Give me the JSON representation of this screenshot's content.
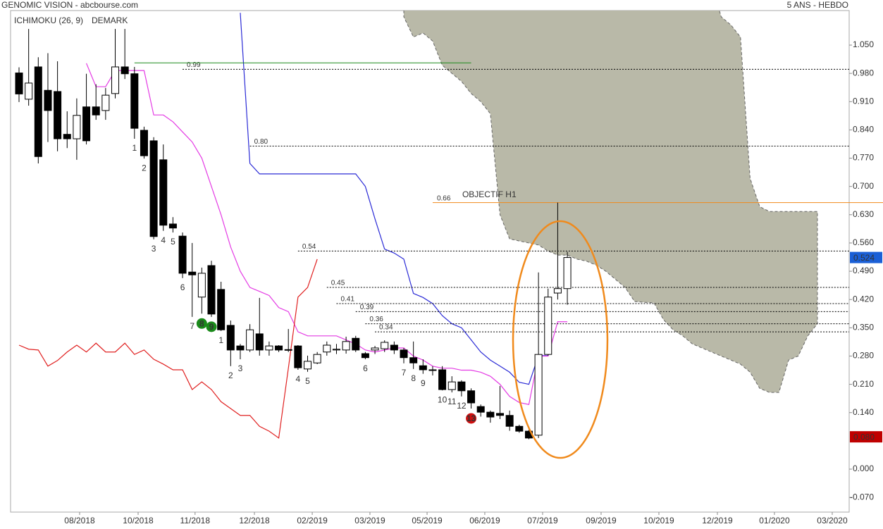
{
  "chart_data": {
    "type": "candlestick",
    "title": "GENOMIC VISION - abcbourse.com",
    "period": "5 ANS - HEBDO",
    "xlim": [
      -0.88,
      86.3
    ],
    "ylim": [
      -0.1064,
      1.1355
    ],
    "xticks": [
      {
        "value": 6.3,
        "label": "08/2018"
      },
      {
        "value": 12.38,
        "label": "10/2018"
      },
      {
        "value": 18.3,
        "label": "11/2018"
      },
      {
        "value": 24.47,
        "label": "12/2018"
      },
      {
        "value": 30.48,
        "label": "02/2019"
      },
      {
        "value": 36.48,
        "label": "03/2019"
      },
      {
        "value": 42.42,
        "label": "05/2019"
      },
      {
        "value": 48.42,
        "label": "06/2019"
      },
      {
        "value": 54.43,
        "label": "07/2019"
      },
      {
        "value": 60.51,
        "label": "09/2019"
      },
      {
        "value": 66.52,
        "label": "10/2019"
      },
      {
        "value": 72.6,
        "label": "12/2019"
      },
      {
        "value": 78.53,
        "label": "01/2020"
      },
      {
        "value": 84.54,
        "label": "03/2020"
      }
    ],
    "yticks": [
      {
        "value": 1.05,
        "label": "1.050"
      },
      {
        "value": 0.98,
        "label": "0.980"
      },
      {
        "value": 0.91,
        "label": "0.910"
      },
      {
        "value": 0.84,
        "label": "0.840"
      },
      {
        "value": 0.77,
        "label": "0.770"
      },
      {
        "value": 0.7,
        "label": "0.700"
      },
      {
        "value": 0.63,
        "label": "0.630"
      },
      {
        "value": 0.56,
        "label": "0.560"
      },
      {
        "value": 0.49,
        "label": "0.490"
      },
      {
        "value": 0.42,
        "label": "0.420"
      },
      {
        "value": 0.35,
        "label": "0.350"
      },
      {
        "value": 0.28,
        "label": "0.280"
      },
      {
        "value": 0.21,
        "label": "0.210"
      },
      {
        "value": 0.14,
        "label": "0.140"
      },
      {
        "value": 0,
        "label": "0.000"
      },
      {
        "value": -0.07,
        "label": "-0.070"
      }
    ],
    "x": [
      0,
      1,
      2,
      3,
      4,
      5,
      6,
      7,
      8,
      9,
      10,
      11,
      12,
      13,
      14,
      15,
      16,
      17,
      18,
      19,
      20,
      21,
      22,
      23,
      24,
      25,
      26,
      27,
      28,
      29,
      30,
      31,
      32,
      33,
      34,
      35,
      36,
      37,
      38,
      39,
      40,
      41,
      42,
      43,
      44,
      45,
      46,
      47,
      48,
      49,
      50,
      51,
      52,
      53,
      54,
      55,
      56,
      57
    ],
    "open": [
      0.981,
      0.916,
      0.996,
      0.938,
      0.935,
      0.829,
      0.818,
      0.897,
      0.897,
      0.888,
      0.93,
      0.996,
      0.979,
      0.839,
      0.813,
      0.766,
      0.607,
      0.577,
      0.488,
      0.426,
      0.504,
      0.445,
      0.356,
      0.305,
      0.295,
      0.335,
      0.295,
      0.305,
      0.295,
      0.305,
      0.248,
      0.263,
      0.29,
      0.295,
      0.295,
      0.324,
      0.286,
      0.295,
      0.298,
      0.307,
      0.295,
      0.276,
      0.256,
      0.246,
      0.246,
      0.197,
      0.216,
      0.194,
      0.155,
      0.141,
      0.138,
      0.133,
      0.106,
      0.094,
      0.084,
      0.284,
      0.436,
      0.447
    ],
    "high": [
      0.995,
      1.09,
      1.02,
      1.03,
      1.01,
      0.886,
      0.918,
      0.979,
      0.953,
      0.944,
      1.09,
      1.09,
      0.996,
      0.848,
      0.822,
      0.804,
      0.624,
      0.586,
      0.56,
      0.499,
      0.516,
      0.464,
      0.368,
      0.31,
      0.359,
      0.424,
      0.316,
      0.307,
      0.347,
      0.307,
      0.281,
      0.29,
      0.316,
      0.31,
      0.328,
      0.33,
      0.29,
      0.305,
      0.319,
      0.316,
      0.3,
      0.316,
      0.272,
      0.255,
      0.255,
      0.23,
      0.22,
      0.2,
      0.16,
      0.145,
      0.206,
      0.145,
      0.11,
      0.097,
      0.487,
      0.447,
      0.66,
      0.538
    ],
    "low": [
      0.909,
      0.9,
      0.757,
      0.81,
      0.787,
      0.795,
      0.766,
      0.804,
      0.865,
      0.865,
      0.918,
      0.966,
      0.818,
      0.769,
      0.569,
      0.59,
      0.586,
      0.473,
      0.377,
      0.385,
      0.377,
      0.342,
      0.255,
      0.272,
      0.29,
      0.281,
      0.281,
      0.29,
      0.29,
      0.246,
      0.241,
      0.26,
      0.281,
      0.285,
      0.286,
      0.29,
      0.272,
      0.285,
      0.29,
      0.285,
      0.262,
      0.248,
      0.236,
      0.232,
      0.195,
      0.19,
      0.18,
      0.15,
      0.13,
      0.115,
      0.124,
      0.095,
      0.09,
      0.074,
      0.077,
      0.281,
      0.42,
      0.407
    ],
    "close": [
      0.929,
      0.956,
      0.774,
      0.888,
      0.818,
      0.818,
      0.876,
      0.813,
      0.877,
      0.926,
      0.996,
      0.979,
      0.844,
      0.776,
      0.576,
      0.604,
      0.597,
      0.485,
      0.481,
      0.485,
      0.384,
      0.345,
      0.295,
      0.295,
      0.345,
      0.295,
      0.305,
      0.295,
      0.296,
      0.251,
      0.267,
      0.284,
      0.307,
      0.297,
      0.316,
      0.295,
      0.276,
      0.3,
      0.314,
      0.295,
      0.276,
      0.263,
      0.246,
      0.245,
      0.197,
      0.216,
      0.194,
      0.164,
      0.141,
      0.129,
      0.133,
      0.106,
      0.094,
      0.077,
      0.284,
      0.426,
      0.447,
      0.524
    ],
    "ichimoku": {
      "label": "ICHIMOKU (26, 9)",
      "color": "#1a3fd0",
      "lines": [
        {
          "color": "#2b2bd6",
          "values": [
            null,
            null,
            null,
            null,
            null,
            null,
            null,
            null,
            null,
            null,
            null,
            null,
            null,
            null,
            null,
            null,
            null,
            null,
            null,
            null,
            null,
            null,
            null,
            1.13,
            0.757,
            0.731,
            0.731,
            0.731,
            0.731,
            0.731,
            0.731,
            0.731,
            0.731,
            0.731,
            0.731,
            0.731,
            0.7,
            0.62,
            0.545,
            0.535,
            0.52,
            0.435,
            0.425,
            0.41,
            0.38,
            0.36,
            0.35,
            0.32,
            0.29,
            0.27,
            0.255,
            0.24,
            0.215,
            0.21,
            0.281,
            0.281,
            null,
            null
          ]
        },
        {
          "color": "#e43be4",
          "values": [
            null,
            null,
            null,
            null,
            null,
            null,
            null,
            1.005,
            0.947,
            0.947,
            0.987,
            0.987,
            0.987,
            0.987,
            0.877,
            0.877,
            0.86,
            0.835,
            0.81,
            0.77,
            0.7,
            0.63,
            0.55,
            0.49,
            0.45,
            0.44,
            0.43,
            0.4,
            0.39,
            0.34,
            0.33,
            0.33,
            0.33,
            0.33,
            0.32,
            0.31,
            0.295,
            0.29,
            0.295,
            0.3,
            0.3,
            0.28,
            0.27,
            0.255,
            0.25,
            0.25,
            0.245,
            0.245,
            0.24,
            0.23,
            0.21,
            0.18,
            0.165,
            0.16,
            0.28,
            0.28,
            0.365,
            0.365
          ]
        },
        {
          "color": "#e02020",
          "values": [
            0.307,
            0.297,
            0.295,
            0.255,
            0.269,
            0.29,
            0.307,
            0.29,
            0.312,
            0.29,
            0.29,
            0.312,
            0.284,
            0.295,
            0.272,
            0.26,
            0.246,
            0.246,
            0.197,
            0.216,
            0.197,
            0.167,
            0.15,
            0.133,
            0.133,
            0.106,
            0.094,
            0.077,
            0.25,
            0.426,
            0.45,
            0.52,
            null,
            null,
            null,
            null,
            null,
            null,
            null,
            null,
            null,
            null,
            null,
            null,
            null,
            null,
            null,
            null,
            null,
            null,
            null,
            null,
            null,
            null,
            null,
            null,
            null,
            null
          ]
        }
      ],
      "cloud": {
        "color": "#b9b9a8",
        "x": [
          40,
          41,
          42,
          43,
          44,
          45,
          46,
          47,
          48,
          49,
          50,
          51,
          52,
          53,
          54,
          55,
          56,
          57,
          58,
          59,
          60,
          61,
          62,
          63,
          64,
          65,
          66,
          67,
          68,
          69,
          70,
          71,
          72,
          73,
          74,
          75,
          76,
          77,
          78,
          79,
          80,
          81,
          82,
          83
        ],
        "upper": [
          1.2,
          1.2,
          1.2,
          1.2,
          1.2,
          1.2,
          1.2,
          1.2,
          1.2,
          1.2,
          1.2,
          1.2,
          1.2,
          1.2,
          1.2,
          1.2,
          1.2,
          1.2,
          1.2,
          1.2,
          1.2,
          1.2,
          1.2,
          1.2,
          1.2,
          1.2,
          1.2,
          1.2,
          1.2,
          1.2,
          1.2,
          1.2,
          1.2,
          1.12,
          1.1,
          1.07,
          0.72,
          0.65,
          0.638,
          0.638,
          0.638,
          0.638,
          0.638,
          0.638
        ],
        "lower": [
          1.12,
          1.07,
          1.08,
          1.06,
          1.0,
          0.98,
          0.96,
          0.93,
          0.91,
          0.88,
          0.63,
          0.57,
          0.565,
          0.56,
          0.555,
          0.54,
          0.53,
          0.53,
          0.52,
          0.515,
          0.505,
          0.49,
          0.47,
          0.45,
          0.415,
          0.413,
          0.412,
          0.37,
          0.345,
          0.33,
          0.31,
          0.3,
          0.29,
          0.28,
          0.27,
          0.26,
          0.24,
          0.2,
          0.19,
          0.19,
          0.27,
          0.28,
          0.33,
          0.36
        ]
      }
    },
    "demark": {
      "label": "DEMARK",
      "color": "#1a8a1a",
      "line": {
        "value": 1.006,
        "x": [
          12,
          47
        ]
      },
      "counts": [
        {
          "x": 12,
          "n": 1,
          "color": "#1a8a1a",
          "circled": false
        },
        {
          "x": 13,
          "n": 2,
          "color": "#1a8a1a",
          "circled": false
        },
        {
          "x": 14,
          "n": 3,
          "color": "#1a8a1a",
          "circled": false
        },
        {
          "x": 15,
          "n": 4,
          "color": "#1a8a1a",
          "circled": false
        },
        {
          "x": 16,
          "n": 5,
          "color": "#1a8a1a",
          "circled": false
        },
        {
          "x": 17,
          "n": 6,
          "color": "#1a8a1a",
          "circled": false
        },
        {
          "x": 18,
          "n": 7,
          "color": "#1a8a1a",
          "circled": false
        },
        {
          "x": 19,
          "n": 8,
          "color": "#1a8a1a",
          "circled": true
        },
        {
          "x": 20,
          "n": 9,
          "color": "#1a8a1a",
          "circled": true
        },
        {
          "x": 21,
          "n": 1,
          "color": "#d01010",
          "circled": false
        },
        {
          "x": 22,
          "n": 2,
          "color": "#d01010",
          "circled": false
        },
        {
          "x": 23,
          "n": 3,
          "color": "#d01010",
          "circled": false
        },
        {
          "x": 29,
          "n": 4,
          "color": "#d01010",
          "circled": false
        },
        {
          "x": 30,
          "n": 5,
          "color": "#d01010",
          "circled": false
        },
        {
          "x": 36,
          "n": 6,
          "color": "#d01010",
          "circled": false
        },
        {
          "x": 40,
          "n": 7,
          "color": "#d01010",
          "circled": false
        },
        {
          "x": 41,
          "n": 8,
          "color": "#d01010",
          "circled": false
        },
        {
          "x": 42,
          "n": 9,
          "color": "#d01010",
          "circled": false
        },
        {
          "x": 44,
          "n": 10,
          "color": "#d01010",
          "circled": false
        },
        {
          "x": 45,
          "n": 11,
          "color": "#d01010",
          "circled": false
        },
        {
          "x": 46,
          "n": 12,
          "color": "#d01010",
          "circled": false
        },
        {
          "x": 47,
          "n": 13,
          "color": "#d01010",
          "circled": true
        }
      ]
    },
    "levels": [
      {
        "value": 0.99,
        "x_start": 17,
        "color": "#000000"
      },
      {
        "value": 0.8,
        "label": "0.80",
        "x_start": 24,
        "color": "#000000"
      },
      {
        "value": 0.66,
        "x_start": 43,
        "color": "#f08a1c",
        "text": "OBJECTIF H1"
      },
      {
        "value": 0.54,
        "x_start": 29,
        "color": "#000000"
      },
      {
        "value": 0.45,
        "x_start": 32,
        "color": "#000000"
      },
      {
        "value": 0.41,
        "x_start": 33,
        "color": "#000000"
      },
      {
        "value": 0.39,
        "x_start": 35,
        "color": "#000000"
      },
      {
        "value": 0.36,
        "x_start": 36,
        "color": "#000000"
      },
      {
        "value": 0.34,
        "x_start": 37,
        "color": "#000000"
      }
    ],
    "price_tags": [
      {
        "value": 0.524,
        "color": "#1a5fd6"
      },
      {
        "value": 0.08,
        "label": "0.080",
        "color": "#c00000"
      }
    ]
  }
}
